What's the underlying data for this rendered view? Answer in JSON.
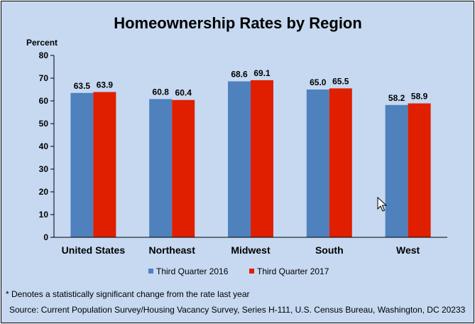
{
  "chart_data": {
    "type": "bar",
    "title": "Homeownership Rates by Region",
    "ylabel": "Percent",
    "ylim": [
      0,
      80
    ],
    "yticks": [
      0,
      10,
      20,
      30,
      40,
      50,
      60,
      70,
      80
    ],
    "grid": false,
    "legend_position": "bottom",
    "categories": [
      "United States",
      "Northeast",
      "Midwest",
      "South",
      "West"
    ],
    "series": [
      {
        "name": "Third Quarter 2016",
        "color": "#4f81bd",
        "values": [
          63.5,
          60.8,
          68.6,
          65.0,
          58.2
        ],
        "labels": [
          "63.5",
          "60.8",
          "68.6",
          "65.0",
          "58.2"
        ]
      },
      {
        "name": "Third Quarter 2017",
        "color": "#e01e00",
        "values": [
          63.9,
          60.4,
          69.1,
          65.5,
          58.9
        ],
        "labels": [
          "63.9",
          "60.4",
          "69.1",
          "65.5",
          "58.9"
        ]
      }
    ]
  },
  "footnote": "* Denotes a statistically significant change from the rate last year",
  "source": "Source: Current Population Survey/Housing Vacancy Survey, Series H-111, U.S. Census Bureau, Washington, DC 20233",
  "colors": {
    "background": "#c6d9f1",
    "axis": "#000000"
  },
  "cursor_icon": "mouse-pointer-icon"
}
